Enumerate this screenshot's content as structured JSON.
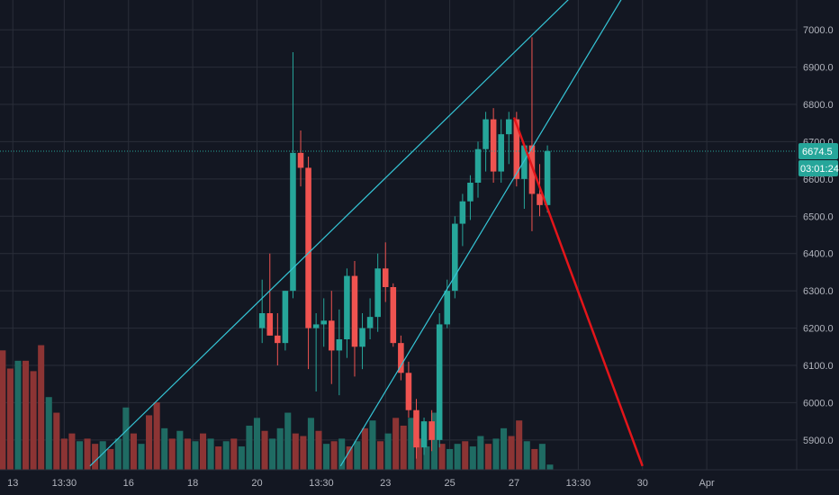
{
  "colors": {
    "background": "#131722",
    "grid": "#2a2e39",
    "up": "#26a69a",
    "down": "#ef5350",
    "up_volume": "#1f6b63",
    "down_volume": "#8c3434",
    "trendline": "#35c5d6",
    "projection": "#e3151a",
    "text": "#b2b5be",
    "price_line": "#26a69a"
  },
  "price_axis": {
    "labels": [
      "7000.0",
      "6900.0",
      "6800.0",
      "6700.0",
      "6600.0",
      "6500.0",
      "6400.0",
      "6300.0",
      "6200.0",
      "6100.0",
      "6000.0",
      "5900.0"
    ],
    "values": [
      7000,
      6900,
      6800,
      6700,
      6600,
      6500,
      6400,
      6300,
      6200,
      6100,
      6000,
      5900
    ]
  },
  "time_axis": {
    "labels": [
      "13",
      "13:30",
      "16",
      "18",
      "20",
      "13:30",
      "23",
      "25",
      "27",
      "13:30",
      "30",
      "Apr"
    ],
    "positions": [
      1,
      5,
      10,
      15,
      20,
      25,
      30,
      35,
      40,
      45,
      50,
      55
    ]
  },
  "current_price": {
    "label": "6674.5",
    "value": 6674.5
  },
  "countdown": {
    "label": "03:01:24"
  },
  "chart_data": {
    "type": "candlestick",
    "ylim": [
      5820,
      7080
    ],
    "xlim": [
      0,
      62
    ],
    "candles": [
      {
        "x": 20.4,
        "o": 6200,
        "h": 6330,
        "l": 6160,
        "c": 6240
      },
      {
        "x": 21.0,
        "o": 6240,
        "h": 6400,
        "l": 6180,
        "c": 6180
      },
      {
        "x": 21.6,
        "o": 6180,
        "h": 6240,
        "l": 6100,
        "c": 6160
      },
      {
        "x": 22.2,
        "o": 6160,
        "h": 6300,
        "l": 6140,
        "c": 6300
      },
      {
        "x": 22.8,
        "o": 6300,
        "h": 6940,
        "l": 6280,
        "c": 6670
      },
      {
        "x": 23.4,
        "o": 6670,
        "h": 6730,
        "l": 6580,
        "c": 6630
      },
      {
        "x": 24.0,
        "o": 6630,
        "h": 6660,
        "l": 6090,
        "c": 6200
      },
      {
        "x": 24.6,
        "o": 6200,
        "h": 6240,
        "l": 6030,
        "c": 6210
      },
      {
        "x": 25.2,
        "o": 6210,
        "h": 6280,
        "l": 6150,
        "c": 6220
      },
      {
        "x": 25.8,
        "o": 6220,
        "h": 6300,
        "l": 6050,
        "c": 6140
      },
      {
        "x": 26.4,
        "o": 6140,
        "h": 6250,
        "l": 6020,
        "c": 6170
      },
      {
        "x": 27.0,
        "o": 6170,
        "h": 6360,
        "l": 6120,
        "c": 6340
      },
      {
        "x": 27.6,
        "o": 6340,
        "h": 6380,
        "l": 6070,
        "c": 6150
      },
      {
        "x": 28.2,
        "o": 6150,
        "h": 6240,
        "l": 6090,
        "c": 6200
      },
      {
        "x": 28.8,
        "o": 6200,
        "h": 6280,
        "l": 6170,
        "c": 6230
      },
      {
        "x": 29.4,
        "o": 6230,
        "h": 6400,
        "l": 6190,
        "c": 6360
      },
      {
        "x": 30.0,
        "o": 6360,
        "h": 6430,
        "l": 6270,
        "c": 6310
      },
      {
        "x": 30.6,
        "o": 6310,
        "h": 6320,
        "l": 6150,
        "c": 6160
      },
      {
        "x": 31.2,
        "o": 6160,
        "h": 6180,
        "l": 6060,
        "c": 6080
      },
      {
        "x": 31.8,
        "o": 6080,
        "h": 6110,
        "l": 5960,
        "c": 5980
      },
      {
        "x": 32.4,
        "o": 5980,
        "h": 6010,
        "l": 5850,
        "c": 5880
      },
      {
        "x": 33.0,
        "o": 5880,
        "h": 5960,
        "l": 5860,
        "c": 5950
      },
      {
        "x": 33.6,
        "o": 5950,
        "h": 5980,
        "l": 5870,
        "c": 5900
      },
      {
        "x": 34.2,
        "o": 5900,
        "h": 6240,
        "l": 5880,
        "c": 6210
      },
      {
        "x": 34.8,
        "o": 6210,
        "h": 6330,
        "l": 6200,
        "c": 6300
      },
      {
        "x": 35.4,
        "o": 6300,
        "h": 6500,
        "l": 6280,
        "c": 6480
      },
      {
        "x": 36.0,
        "o": 6480,
        "h": 6560,
        "l": 6420,
        "c": 6540
      },
      {
        "x": 36.6,
        "o": 6540,
        "h": 6610,
        "l": 6490,
        "c": 6590
      },
      {
        "x": 37.2,
        "o": 6590,
        "h": 6700,
        "l": 6550,
        "c": 6680
      },
      {
        "x": 37.8,
        "o": 6680,
        "h": 6780,
        "l": 6620,
        "c": 6760
      },
      {
        "x": 38.4,
        "o": 6760,
        "h": 6790,
        "l": 6590,
        "c": 6620
      },
      {
        "x": 39.0,
        "o": 6620,
        "h": 6760,
        "l": 6590,
        "c": 6720
      },
      {
        "x": 39.6,
        "o": 6720,
        "h": 6780,
        "l": 6640,
        "c": 6760
      },
      {
        "x": 40.2,
        "o": 6760,
        "h": 6780,
        "l": 6580,
        "c": 6600
      },
      {
        "x": 40.8,
        "o": 6600,
        "h": 6680,
        "l": 6520,
        "c": 6690
      },
      {
        "x": 41.4,
        "o": 6690,
        "h": 6980,
        "l": 6460,
        "c": 6560
      },
      {
        "x": 42.0,
        "o": 6560,
        "h": 6640,
        "l": 6500,
        "c": 6530
      },
      {
        "x": 42.6,
        "o": 6530,
        "h": 6690,
        "l": 6510,
        "c": 6675
      }
    ],
    "volume": {
      "ylim": [
        0,
        260
      ],
      "bars": [
        {
          "x": 0.2,
          "v": 230,
          "up": false
        },
        {
          "x": 0.8,
          "v": 195,
          "up": false
        },
        {
          "x": 1.4,
          "v": 210,
          "up": true
        },
        {
          "x": 2.0,
          "v": 210,
          "up": false
        },
        {
          "x": 2.6,
          "v": 190,
          "up": false
        },
        {
          "x": 3.2,
          "v": 240,
          "up": false
        },
        {
          "x": 3.8,
          "v": 140,
          "up": true
        },
        {
          "x": 4.4,
          "v": 110,
          "up": false
        },
        {
          "x": 5.0,
          "v": 60,
          "up": false
        },
        {
          "x": 5.6,
          "v": 70,
          "up": false
        },
        {
          "x": 6.2,
          "v": 55,
          "up": true
        },
        {
          "x": 6.8,
          "v": 60,
          "up": false
        },
        {
          "x": 7.4,
          "v": 50,
          "up": false
        },
        {
          "x": 8.0,
          "v": 55,
          "up": true
        },
        {
          "x": 8.6,
          "v": 40,
          "up": false
        },
        {
          "x": 9.2,
          "v": 60,
          "up": true
        },
        {
          "x": 9.8,
          "v": 120,
          "up": true
        },
        {
          "x": 10.4,
          "v": 70,
          "up": false
        },
        {
          "x": 11.0,
          "v": 50,
          "up": true
        },
        {
          "x": 11.6,
          "v": 105,
          "up": false
        },
        {
          "x": 12.2,
          "v": 130,
          "up": false
        },
        {
          "x": 12.8,
          "v": 80,
          "up": true
        },
        {
          "x": 13.4,
          "v": 60,
          "up": false
        },
        {
          "x": 14.0,
          "v": 75,
          "up": true
        },
        {
          "x": 14.6,
          "v": 60,
          "up": false
        },
        {
          "x": 15.2,
          "v": 55,
          "up": true
        },
        {
          "x": 15.8,
          "v": 70,
          "up": false
        },
        {
          "x": 16.4,
          "v": 60,
          "up": true
        },
        {
          "x": 17.0,
          "v": 45,
          "up": false
        },
        {
          "x": 17.6,
          "v": 55,
          "up": true
        },
        {
          "x": 18.2,
          "v": 60,
          "up": false
        },
        {
          "x": 18.8,
          "v": 45,
          "up": true
        },
        {
          "x": 19.4,
          "v": 85,
          "up": true
        },
        {
          "x": 20.0,
          "v": 100,
          "up": true
        },
        {
          "x": 20.6,
          "v": 75,
          "up": false
        },
        {
          "x": 21.2,
          "v": 60,
          "up": true
        },
        {
          "x": 21.8,
          "v": 80,
          "up": true
        },
        {
          "x": 22.4,
          "v": 110,
          "up": true
        },
        {
          "x": 23.0,
          "v": 70,
          "up": false
        },
        {
          "x": 23.6,
          "v": 65,
          "up": false
        },
        {
          "x": 24.2,
          "v": 100,
          "up": true
        },
        {
          "x": 24.8,
          "v": 75,
          "up": false
        },
        {
          "x": 25.4,
          "v": 50,
          "up": true
        },
        {
          "x": 26.0,
          "v": 55,
          "up": false
        },
        {
          "x": 26.6,
          "v": 60,
          "up": true
        },
        {
          "x": 27.2,
          "v": 45,
          "up": false
        },
        {
          "x": 27.8,
          "v": 55,
          "up": true
        },
        {
          "x": 28.4,
          "v": 80,
          "up": false
        },
        {
          "x": 29.0,
          "v": 95,
          "up": true
        },
        {
          "x": 29.6,
          "v": 55,
          "up": false
        },
        {
          "x": 30.2,
          "v": 70,
          "up": true
        },
        {
          "x": 30.8,
          "v": 100,
          "up": false
        },
        {
          "x": 31.4,
          "v": 85,
          "up": false
        },
        {
          "x": 32.0,
          "v": 100,
          "up": true
        },
        {
          "x": 32.6,
          "v": 60,
          "up": false
        },
        {
          "x": 33.2,
          "v": 45,
          "up": true
        },
        {
          "x": 33.8,
          "v": 110,
          "up": true
        },
        {
          "x": 34.4,
          "v": 50,
          "up": false
        },
        {
          "x": 35.0,
          "v": 40,
          "up": true
        },
        {
          "x": 35.6,
          "v": 50,
          "up": true
        },
        {
          "x": 36.2,
          "v": 55,
          "up": false
        },
        {
          "x": 36.8,
          "v": 45,
          "up": true
        },
        {
          "x": 37.4,
          "v": 65,
          "up": true
        },
        {
          "x": 38.0,
          "v": 50,
          "up": false
        },
        {
          "x": 38.6,
          "v": 60,
          "up": true
        },
        {
          "x": 39.2,
          "v": 80,
          "up": true
        },
        {
          "x": 39.8,
          "v": 65,
          "up": false
        },
        {
          "x": 40.4,
          "v": 95,
          "up": false
        },
        {
          "x": 41.0,
          "v": 55,
          "up": true
        },
        {
          "x": 41.6,
          "v": 40,
          "up": false
        },
        {
          "x": 42.2,
          "v": 50,
          "up": true
        },
        {
          "x": 42.8,
          "v": 10,
          "up": true
        }
      ]
    },
    "trendlines": [
      {
        "from": {
          "x": 7.0,
          "y": 5830
        },
        "to": {
          "x": 44.5,
          "y": 7090
        },
        "color": "trendline"
      },
      {
        "from": {
          "x": 26.5,
          "y": 5830
        },
        "to": {
          "x": 48.5,
          "y": 7090
        },
        "color": "trendline"
      },
      {
        "from": {
          "x": 40.0,
          "y": 6765
        },
        "to": {
          "x": 50.0,
          "y": 5830
        },
        "color": "projection"
      }
    ],
    "grid": true
  }
}
